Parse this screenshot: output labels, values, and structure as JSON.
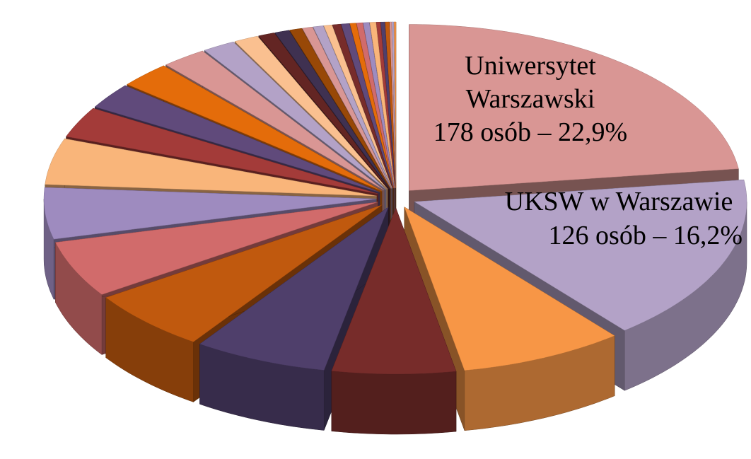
{
  "chart_data": {
    "type": "pie3d",
    "categories": [
      "Uniwersytet Warszawski",
      "UKSW w Warszawie",
      null,
      null,
      null,
      null,
      null,
      null,
      null,
      null,
      null,
      null,
      null,
      null,
      null,
      null,
      null,
      null,
      null,
      null,
      null,
      null,
      null,
      null,
      null,
      null,
      null,
      null,
      null,
      null,
      null,
      null,
      null
    ],
    "values": [
      22.9,
      16.2,
      8,
      6,
      6.5,
      6,
      5.5,
      5,
      4.5,
      3,
      2.5,
      2.5,
      2.2,
      1.6,
      1.2,
      0.8,
      0.7,
      0.6,
      0.5,
      0.5,
      0.4,
      0.4,
      0.4,
      0.3,
      0.3,
      0.3,
      0.3,
      0.2,
      0.2,
      0.2,
      0.1,
      0.1,
      0.1
    ],
    "value_labels": [
      "178 osób – 22,9%",
      "126 osób – 16,2%",
      null,
      null,
      null,
      null,
      null,
      null,
      null,
      null,
      null,
      null,
      null,
      null,
      null,
      null,
      null,
      null,
      null,
      null,
      null,
      null,
      null,
      null,
      null,
      null,
      null,
      null,
      null,
      null,
      null,
      null,
      null
    ],
    "colors": [
      "#d99694",
      "#b3a2c7",
      "#f79646",
      "#772c2a",
      "#4f3f6b",
      "#c0590e",
      "#d16b6b",
      "#9e8bbf",
      "#f9b57a",
      "#a33b39",
      "#604a7b",
      "#e46c0a",
      "#d99694",
      "#b3a2c7",
      "#fac090",
      "#632523",
      "#3f3151",
      "#984807",
      "#d99694",
      "#b3a2c7",
      "#fac090",
      "#772c2a",
      "#604a7b",
      "#e46c0a",
      "#d16b6b",
      "#9e8bbf",
      "#f9b57a",
      "#a33b39",
      "#4f3f6b",
      "#c0590e",
      "#d99694",
      "#b3a2c7",
      "#f79646"
    ]
  }
}
